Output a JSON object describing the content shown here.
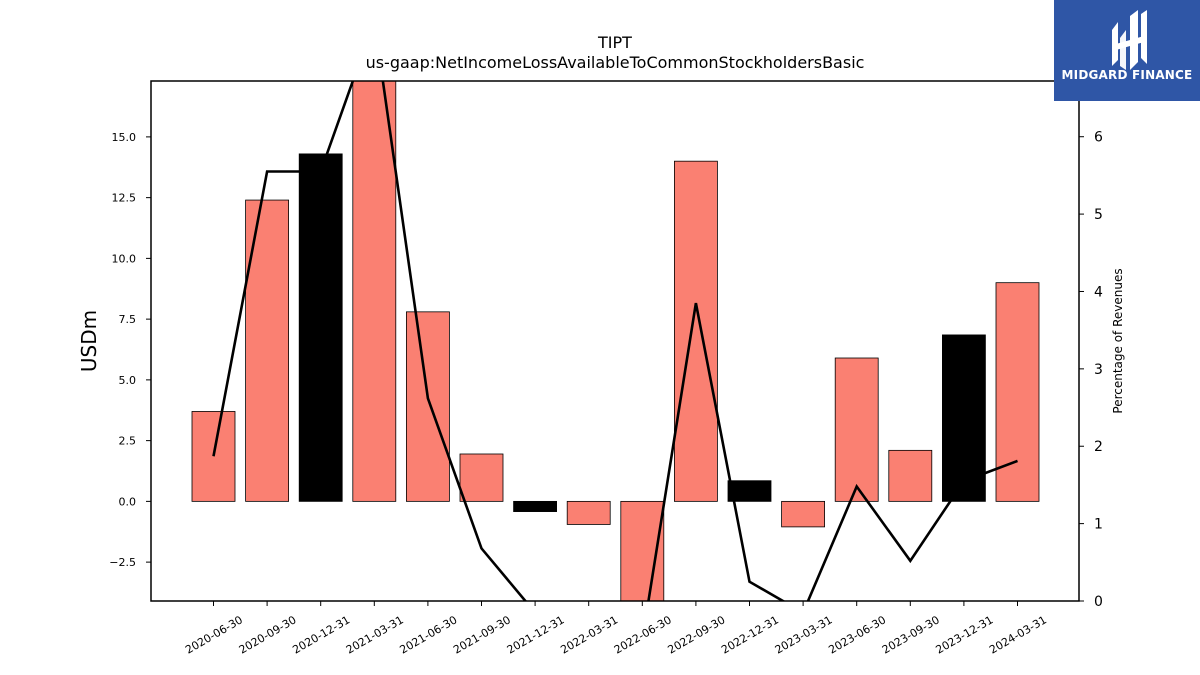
{
  "chart_data": {
    "type": "bar",
    "title": "TIPT",
    "subtitle": "us-gaap:NetIncomeLossAvailableToCommonStockholdersBasic",
    "ylabel": "USDm",
    "y2label": "Percentage of Revenues",
    "categories": [
      "2020-06-30",
      "2020-09-30",
      "2020-12-31",
      "2021-03-31",
      "2021-06-30",
      "2021-09-30",
      "2021-12-31",
      "2022-03-31",
      "2022-06-30",
      "2022-09-30",
      "2022-12-31",
      "2023-03-31",
      "2023-06-30",
      "2023-09-30",
      "2023-12-31",
      "2024-03-31"
    ],
    "ylim": [
      -4.1,
      17.3
    ],
    "yticks": [
      -2.5,
      0.0,
      2.5,
      5.0,
      7.5,
      10.0,
      12.5,
      15.0
    ],
    "ytick_labels": [
      "−2.5",
      "0.0",
      "2.5",
      "5.0",
      "7.5",
      "10.0",
      "12.5",
      "15.0"
    ],
    "y2lim": [
      0,
      6.72
    ],
    "y2ticks": [
      0,
      1,
      2,
      3,
      4,
      5,
      6
    ],
    "y2tick_labels": [
      "0",
      "1",
      "2",
      "3",
      "4",
      "5",
      "6"
    ],
    "series": [
      {
        "kind": "bar",
        "values": [
          3.7,
          12.4,
          14.3,
          17.5,
          7.8,
          1.95,
          -0.42,
          -0.95,
          -4.5,
          14.0,
          0.85,
          -1.05,
          5.9,
          2.1,
          6.85,
          9.0
        ],
        "highlight": [
          false,
          false,
          true,
          false,
          false,
          false,
          true,
          false,
          false,
          false,
          true,
          false,
          false,
          false,
          true,
          false
        ]
      },
      {
        "kind": "line",
        "axis": "secondary",
        "values": [
          1.87,
          5.55,
          5.55,
          7.5,
          2.62,
          0.68,
          -0.15,
          -0.9,
          -0.5,
          3.85,
          0.25,
          -0.15,
          1.48,
          0.52,
          1.55,
          1.81
        ]
      }
    ],
    "colors": {
      "bar": "#fa8072",
      "bar_highlight": "#000000",
      "line": "#000000"
    },
    "grid": false
  },
  "logo": {
    "text": "MIDGARD FINANCE",
    "color": "#2f56a6"
  }
}
